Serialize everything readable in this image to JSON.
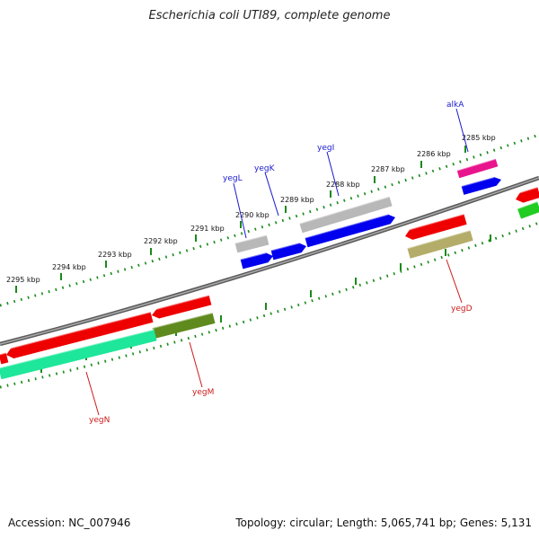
{
  "title": "Escherichia coli UTI89, complete genome",
  "footer": {
    "accession": "Accession: NC_007946",
    "topology": "Topology: circular; Length: 5,065,741 bp; Genes: 5,131"
  },
  "kbp_labels": [
    "2285 kbp",
    "2286 kbp",
    "2287 kbp",
    "2288 kbp",
    "2289 kbp",
    "2290 kbp",
    "2291 kbp",
    "2292 kbp",
    "2293 kbp",
    "2294 kbp",
    "2295 kbp"
  ],
  "gene_labels": {
    "alkA": "alkA",
    "yegI": "yegI",
    "yegK": "yegK",
    "yegL": "yegL",
    "yegD": "yegD",
    "yegM": "yegM",
    "yegN": "yegN"
  },
  "colors": {
    "backbone": "#808080",
    "tick": "#1a8a1a",
    "label_blue": "#1a1acc",
    "label_red": "#cc1a1a",
    "red_gene": "#ee0000",
    "blue_gene": "#0000ee",
    "gray_gene": "#b8b8b8",
    "magenta_gene": "#e8148c",
    "olive_gene": "#5f8a1e",
    "khaki_gene": "#b3ad69",
    "teal_gene": "#1ee69a",
    "green_gene": "#22cc22"
  }
}
